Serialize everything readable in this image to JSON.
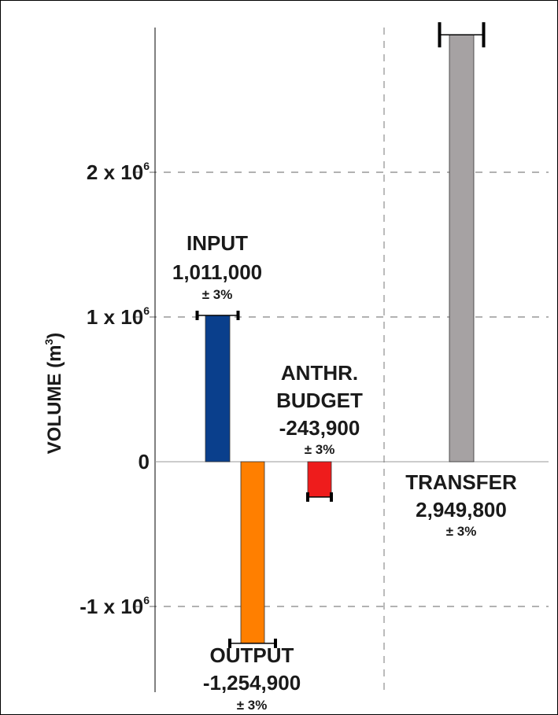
{
  "chart_data": {
    "type": "bar",
    "ylabel": "VOLUME (m³)",
    "ylabel_text": "VOLUME (m",
    "ylabel_sup": "3",
    "ylabel_close": ")",
    "ylim": [
      -1540000,
      2980000
    ],
    "grid": "dashed horizontal lines at labeled ticks",
    "yticks": [
      {
        "value": 2000000,
        "base": "2 x 10",
        "exp": "6"
      },
      {
        "value": 1000000,
        "base": "1 x 10",
        "exp": "6"
      },
      {
        "value": 0,
        "base": "0",
        "exp": ""
      },
      {
        "value": -1000000,
        "base": "-1 x 10",
        "exp": "6"
      }
    ],
    "bars": [
      {
        "key": "input",
        "label": "INPUT",
        "value_text": "1,011,000",
        "error_text": "± 3%",
        "value": 1011000,
        "error_pct": 3,
        "color": "#0a3f8c"
      },
      {
        "key": "output",
        "label": "OUTPUT",
        "value_text": "-1,254,900",
        "error_text": "± 3%",
        "value": -1254900,
        "error_pct": 3,
        "color": "#ff7f00"
      },
      {
        "key": "budget",
        "label_line1": "ANTHR.",
        "label_line2": "BUDGET",
        "value_text": "-243,900",
        "error_text": "± 3%",
        "value": -243900,
        "error_pct": 3,
        "color": "#ee1c1c"
      },
      {
        "key": "transfer",
        "label": "TRANSFER",
        "value_text": "2,949,800",
        "error_text": "± 3%",
        "value": 2949800,
        "error_pct": 3,
        "color": "#a6a2a3"
      }
    ]
  }
}
